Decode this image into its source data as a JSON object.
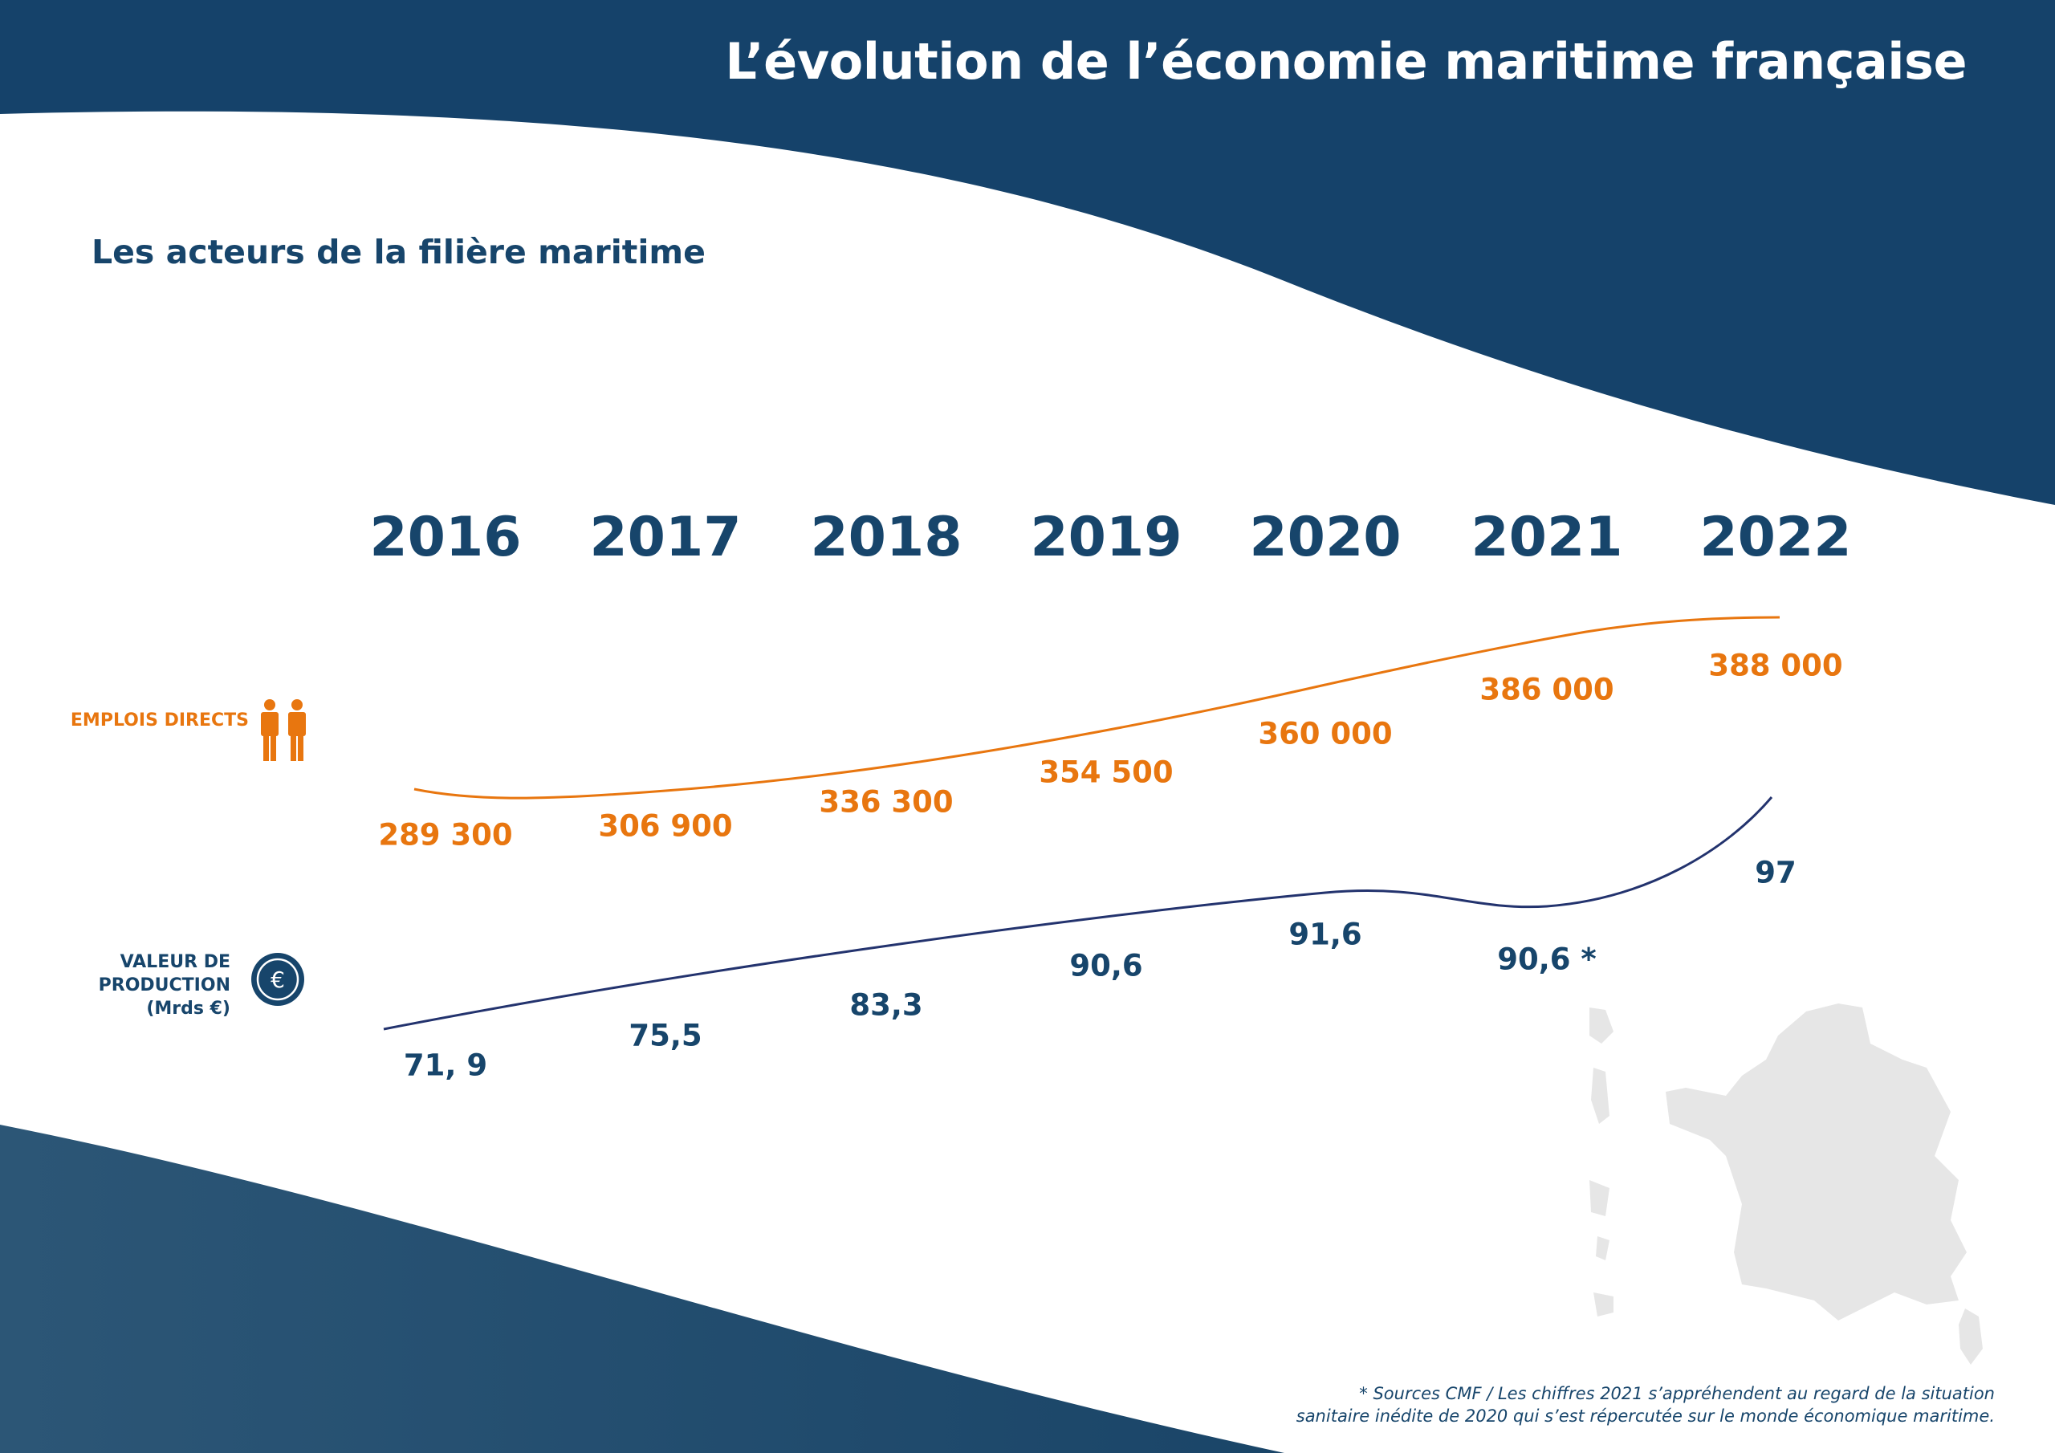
{
  "header": {
    "title": "L’évolution de l’économie maritime française"
  },
  "subtitle": "Les acteurs de la filière maritime",
  "colors": {
    "navy": "#17456b",
    "orange": "#e8760f",
    "map_gray": "#e6e6e6"
  },
  "legend": {
    "emplois": {
      "label": "EMPLOIS DIRECTS",
      "icon": "people-icon"
    },
    "valeur": {
      "line1": "VALEUR DE",
      "line2": "PRODUCTION",
      "line3": "(Mrds €)",
      "icon": "euro-coin-icon"
    }
  },
  "chart_data": {
    "type": "line",
    "categories": [
      "2016",
      "2017",
      "2018",
      "2019",
      "2020",
      "2021",
      "2022"
    ],
    "series": [
      {
        "name": "EMPLOIS DIRECTS",
        "values": [
          289300,
          306900,
          336300,
          354500,
          360000,
          386000,
          388000
        ],
        "labels": [
          "289 300",
          "306 900",
          "336 300",
          "354 500",
          "360 000",
          "386 000",
          "388 000"
        ],
        "color": "#e8760f"
      },
      {
        "name": "VALEUR DE PRODUCTION (Mrds €)",
        "values": [
          71.9,
          75.5,
          83.3,
          90.6,
          91.6,
          90.6,
          97
        ],
        "labels": [
          "71, 9",
          "75,5",
          "83,3",
          "90,6",
          "91,6",
          "90,6 *",
          "97"
        ],
        "color": "#17456b"
      }
    ]
  },
  "footnote": {
    "line1": "* Sources CMF / Les chiffres 2021 s’appréhendent au regard de la situation",
    "line2": "sanitaire inédite de 2020 qui s’est répercutée sur le monde économique maritime."
  }
}
